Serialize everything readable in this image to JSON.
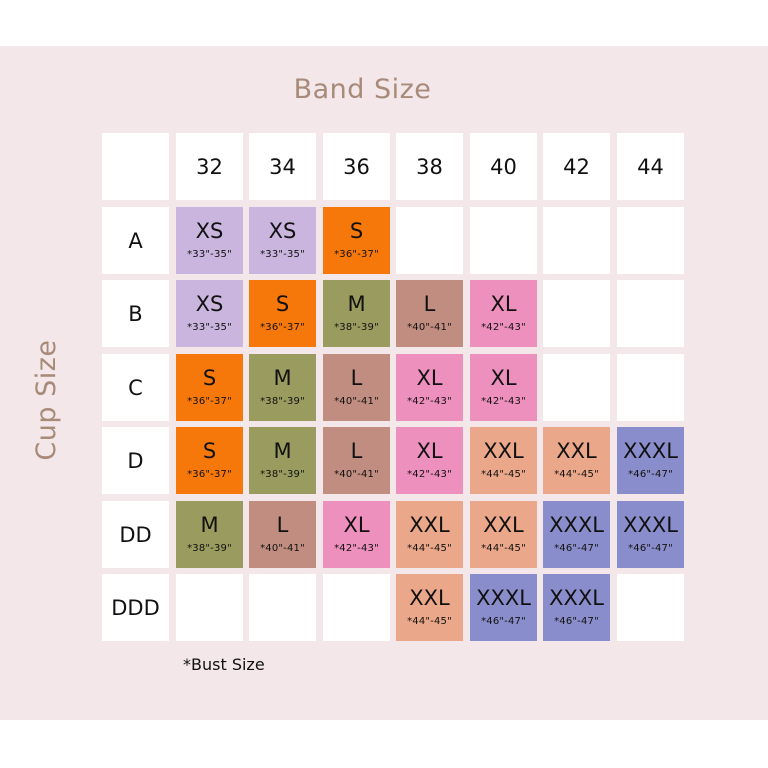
{
  "titles": {
    "band_size": "Band Size",
    "cup_size": "Cup Size"
  },
  "band_sizes": [
    "32",
    "34",
    "36",
    "38",
    "40",
    "42",
    "44"
  ],
  "cup_sizes": [
    "A",
    "B",
    "C",
    "D",
    "DD",
    "DDD"
  ],
  "size_colors": {
    "XS": "#c9b5de",
    "S": "#f7780a",
    "M": "#9a9c5f",
    "L": "#c08d80",
    "XL": "#ee90bd",
    "XXL": "#eaa789",
    "XXXL": "#8a8dcb"
  },
  "table": [
    [
      {
        "size": "XS",
        "bust": "*33\"-35\""
      },
      {
        "size": "XS",
        "bust": "*33\"-35\""
      },
      {
        "size": "S",
        "bust": "*36\"-37\""
      },
      null,
      null,
      null,
      null
    ],
    [
      {
        "size": "XS",
        "bust": "*33\"-35\""
      },
      {
        "size": "S",
        "bust": "*36\"-37\""
      },
      {
        "size": "M",
        "bust": "*38\"-39\""
      },
      {
        "size": "L",
        "bust": "*40\"-41\""
      },
      {
        "size": "XL",
        "bust": "*42\"-43\""
      },
      null,
      null
    ],
    [
      {
        "size": "S",
        "bust": "*36\"-37\""
      },
      {
        "size": "M",
        "bust": "*38\"-39\""
      },
      {
        "size": "L",
        "bust": "*40\"-41\""
      },
      {
        "size": "XL",
        "bust": "*42\"-43\""
      },
      {
        "size": "XL",
        "bust": "*42\"-43\""
      },
      null,
      null
    ],
    [
      {
        "size": "S",
        "bust": "*36\"-37\""
      },
      {
        "size": "M",
        "bust": "*38\"-39\""
      },
      {
        "size": "L",
        "bust": "*40\"-41\""
      },
      {
        "size": "XL",
        "bust": "*42\"-43\""
      },
      {
        "size": "XXL",
        "bust": "*44\"-45\""
      },
      {
        "size": "XXL",
        "bust": "*44\"-45\""
      },
      {
        "size": "XXXL",
        "bust": "*46\"-47\""
      }
    ],
    [
      {
        "size": "M",
        "bust": "*38\"-39\""
      },
      {
        "size": "L",
        "bust": "*40\"-41\""
      },
      {
        "size": "XL",
        "bust": "*42\"-43\""
      },
      {
        "size": "XXL",
        "bust": "*44\"-45\""
      },
      {
        "size": "XXL",
        "bust": "*44\"-45\""
      },
      {
        "size": "XXXL",
        "bust": "*46\"-47\""
      },
      {
        "size": "XXXL",
        "bust": "*46\"-47\""
      }
    ],
    [
      null,
      null,
      null,
      {
        "size": "XXL",
        "bust": "*44\"-45\""
      },
      {
        "size": "XXXL",
        "bust": "*46\"-47\""
      },
      {
        "size": "XXXL",
        "bust": "*46\"-47\""
      },
      null
    ]
  ],
  "footnote": "*Bust Size"
}
